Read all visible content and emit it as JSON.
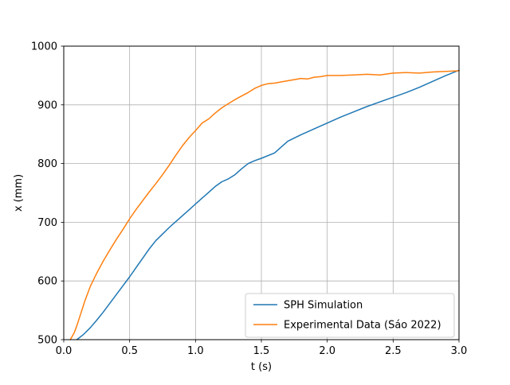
{
  "chart_data": {
    "type": "line",
    "title": "",
    "xlabel": "t (s)",
    "ylabel": "x (mm)",
    "xlim": [
      0.0,
      3.0
    ],
    "ylim": [
      500,
      1000
    ],
    "grid": true,
    "legend_position": "lower right",
    "colors": {
      "background": "#ffffff",
      "grid": "#b0b0b0",
      "spine": "#000000",
      "legend_border": "#cccccc"
    },
    "xticks": {
      "values": [
        0.0,
        0.5,
        1.0,
        1.5,
        2.0,
        2.5,
        3.0
      ],
      "labels": [
        "0.0",
        "0.5",
        "1.0",
        "1.5",
        "2.0",
        "2.5",
        "3.0"
      ]
    },
    "yticks": {
      "values": [
        500,
        600,
        700,
        800,
        900,
        1000
      ],
      "labels": [
        "500",
        "600",
        "700",
        "800",
        "900",
        "1000"
      ]
    },
    "series": [
      {
        "name": "SPH Simulation",
        "color": "#1f77b4",
        "x": [
          0.1,
          0.15,
          0.2,
          0.25,
          0.3,
          0.35,
          0.4,
          0.45,
          0.5,
          0.55,
          0.6,
          0.65,
          0.7,
          0.75,
          0.8,
          0.85,
          0.9,
          0.95,
          1.0,
          1.05,
          1.1,
          1.15,
          1.2,
          1.25,
          1.3,
          1.35,
          1.4,
          1.45,
          1.5,
          1.6,
          1.7,
          1.8,
          1.9,
          2.0,
          2.1,
          2.2,
          2.3,
          2.4,
          2.5,
          2.6,
          2.7,
          2.8,
          2.9,
          3.0
        ],
        "y": [
          500,
          509,
          520,
          533,
          547,
          562,
          577,
          592,
          607,
          623,
          639,
          655,
          669,
          680,
          691,
          701,
          711,
          721,
          731,
          741,
          751,
          761,
          769,
          774,
          781,
          791,
          800,
          805,
          809,
          818,
          838,
          849,
          859,
          869,
          879,
          888,
          897,
          905,
          913,
          921,
          930,
          940,
          950,
          959
        ]
      },
      {
        "name": "Experimental Data (Sáo 2022)",
        "color": "#ff7f0e",
        "x": [
          0.05,
          0.08,
          0.1,
          0.13,
          0.16,
          0.2,
          0.25,
          0.3,
          0.35,
          0.4,
          0.45,
          0.5,
          0.55,
          0.6,
          0.65,
          0.7,
          0.75,
          0.8,
          0.85,
          0.9,
          0.95,
          1.0,
          1.05,
          1.1,
          1.15,
          1.2,
          1.25,
          1.3,
          1.35,
          1.4,
          1.45,
          1.5,
          1.55,
          1.6,
          1.65,
          1.7,
          1.75,
          1.8,
          1.85,
          1.9,
          1.95,
          2.0,
          2.1,
          2.2,
          2.3,
          2.4,
          2.5,
          2.6,
          2.7,
          2.8,
          2.9,
          3.0
        ],
        "y": [
          500,
          512,
          524,
          545,
          566,
          590,
          613,
          634,
          653,
          671,
          688,
          706,
          722,
          737,
          752,
          766,
          781,
          797,
          814,
          830,
          844,
          856,
          869,
          876,
          886,
          895,
          902,
          909,
          915,
          921,
          928,
          933,
          936,
          937,
          939,
          941,
          943,
          945,
          944,
          947,
          948,
          950,
          950,
          951,
          952,
          951,
          954,
          955,
          954,
          956,
          957,
          958
        ]
      }
    ]
  }
}
